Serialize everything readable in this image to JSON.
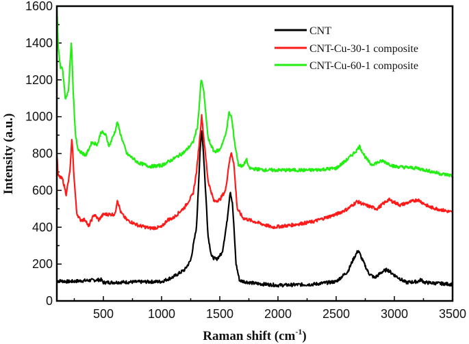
{
  "chart_data": {
    "type": "line",
    "title": "",
    "xlabel": "Raman shift (cm",
    "xlabel_sup": "-1",
    "xlabel_close": ")",
    "ylabel": "Intensity (a.u.)",
    "xlim": [
      100,
      3500
    ],
    "ylim": [
      0,
      1600
    ],
    "xticks": [
      500,
      1000,
      1500,
      2000,
      2500,
      3000,
      3500
    ],
    "yticks": [
      0,
      200,
      400,
      600,
      800,
      1000,
      1200,
      1400,
      1600
    ],
    "grid": false,
    "legend_position": "top-right",
    "series": [
      {
        "name": "CNT",
        "color": "#000000",
        "x": [
          100,
          200,
          480,
          500,
          1000,
          1100,
          1200,
          1250,
          1300,
          1330,
          1345,
          1360,
          1400,
          1430,
          1470,
          1520,
          1560,
          1590,
          1610,
          1640,
          1670,
          1800,
          2000,
          2300,
          2500,
          2600,
          2650,
          2690,
          2720,
          2780,
          2830,
          2900,
          2940,
          3000,
          3100,
          3200,
          3230,
          3260,
          3500
        ],
        "y": [
          110,
          105,
          115,
          100,
          105,
          130,
          170,
          220,
          400,
          800,
          940,
          800,
          350,
          240,
          225,
          260,
          420,
          600,
          520,
          200,
          110,
          95,
          85,
          90,
          105,
          160,
          230,
          275,
          230,
          150,
          125,
          160,
          170,
          140,
          100,
          105,
          115,
          100,
          90
        ]
      },
      {
        "name": "CNT-Cu-30-1 composite",
        "color": "#ff1a1a",
        "x": [
          100,
          110,
          150,
          180,
          200,
          215,
          230,
          245,
          270,
          300,
          350,
          370,
          420,
          460,
          500,
          600,
          620,
          650,
          700,
          800,
          900,
          1000,
          1050,
          1100,
          1200,
          1270,
          1300,
          1330,
          1345,
          1360,
          1400,
          1450,
          1500,
          1550,
          1580,
          1600,
          1620,
          1650,
          1700,
          1800,
          1950,
          2100,
          2300,
          2500,
          2600,
          2680,
          2750,
          2850,
          2950,
          3050,
          3200,
          3300,
          3500
        ],
        "y": [
          800,
          680,
          660,
          580,
          650,
          720,
          890,
          700,
          480,
          440,
          440,
          400,
          470,
          440,
          470,
          470,
          550,
          480,
          440,
          410,
          395,
          400,
          440,
          450,
          510,
          580,
          700,
          900,
          1010,
          900,
          650,
          540,
          550,
          600,
          750,
          805,
          750,
          500,
          450,
          430,
          400,
          410,
          430,
          470,
          500,
          540,
          520,
          500,
          550,
          520,
          550,
          510,
          480
        ]
      },
      {
        "name": "CNT-Cu-60-1 composite",
        "color": "#22ee11",
        "x": [
          100,
          110,
          130,
          150,
          175,
          200,
          215,
          225,
          240,
          260,
          280,
          300,
          350,
          400,
          450,
          480,
          520,
          550,
          600,
          620,
          650,
          700,
          800,
          900,
          1000,
          1100,
          1200,
          1270,
          1310,
          1340,
          1360,
          1400,
          1450,
          1500,
          1550,
          1580,
          1600,
          1630,
          1660,
          1700,
          1730,
          1750,
          1900,
          2100,
          2300,
          2500,
          2600,
          2680,
          2700,
          2750,
          2800,
          2900,
          3000,
          3200,
          3400,
          3500
        ],
        "y": [
          1600,
          1400,
          1270,
          1260,
          1090,
          1150,
          1300,
          1420,
          1150,
          900,
          830,
          810,
          790,
          860,
          850,
          920,
          900,
          840,
          920,
          970,
          900,
          800,
          750,
          730,
          735,
          770,
          810,
          860,
          950,
          1200,
          1150,
          880,
          810,
          820,
          900,
          1020,
          1000,
          850,
          740,
          730,
          770,
          720,
          710,
          710,
          710,
          720,
          770,
          820,
          840,
          780,
          740,
          760,
          730,
          720,
          690,
          680
        ]
      }
    ]
  }
}
